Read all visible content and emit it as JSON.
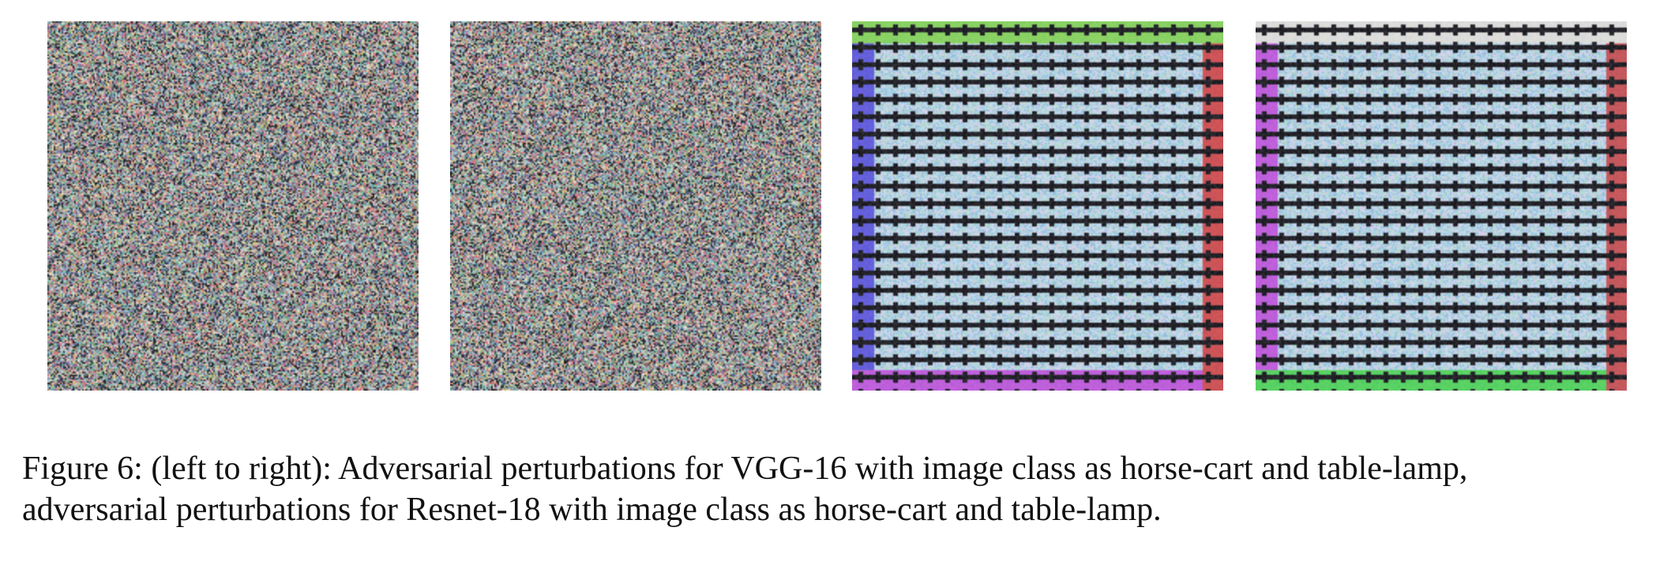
{
  "figure": {
    "panels": [
      {
        "kind": "noise",
        "seed": 11
      },
      {
        "kind": "noise",
        "seed": 29
      },
      {
        "kind": "grid",
        "seed": 47,
        "frame_colors": [
          "#7ad23a",
          "#d42a2a",
          "#c03ad8",
          "#4a3ad8"
        ]
      },
      {
        "kind": "grid",
        "seed": 83,
        "frame_colors": [
          "#e8e0d8",
          "#c93030",
          "#3ad23a",
          "#c03ad8"
        ]
      }
    ],
    "caption_line1": "Figure 6: (left to right): Adversarial perturbations for VGG-16 with image class as horse-cart and table-lamp,",
    "caption_line2": "adversarial perturbations for Resnet-18 with image class as horse-cart and table-lamp."
  }
}
